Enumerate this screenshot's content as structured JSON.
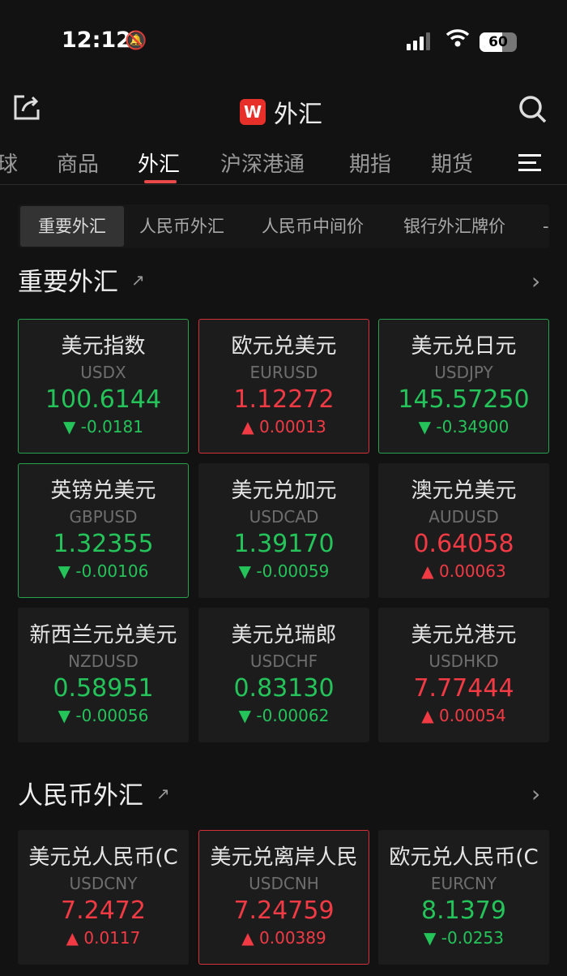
{
  "status": {
    "time": "12:12",
    "battery": "60"
  },
  "header": {
    "logo": "W",
    "title": "外汇",
    "icons": [
      "share-icon",
      "search-icon"
    ]
  },
  "tabs": [
    {
      "label": "球"
    },
    {
      "label": "商品"
    },
    {
      "label": "外汇",
      "active": true
    },
    {
      "label": "沪深港通"
    },
    {
      "label": "期指"
    },
    {
      "label": "期货"
    }
  ],
  "subtabs": [
    {
      "label": "重要外汇",
      "active": true
    },
    {
      "label": "人民币外汇"
    },
    {
      "label": "人民币中间价"
    },
    {
      "label": "银行外汇牌价"
    },
    {
      "label": "-"
    }
  ],
  "sections": [
    {
      "title": "重要外汇",
      "cards": [
        {
          "name": "美元指数",
          "code": "USDX",
          "price": "100.6144",
          "change": "-0.0181",
          "dir": "down",
          "highlight": true
        },
        {
          "name": "欧元兑美元",
          "code": "EURUSD",
          "price": "1.12272",
          "change": "0.00013",
          "dir": "up",
          "highlight": true
        },
        {
          "name": "美元兑日元",
          "code": "USDJPY",
          "price": "145.57250",
          "change": "-0.34900",
          "dir": "down",
          "highlight": true
        },
        {
          "name": "英镑兑美元",
          "code": "GBPUSD",
          "price": "1.32355",
          "change": "-0.00106",
          "dir": "down",
          "highlight": true
        },
        {
          "name": "美元兑加元",
          "code": "USDCAD",
          "price": "1.39170",
          "change": "-0.00059",
          "dir": "down"
        },
        {
          "name": "澳元兑美元",
          "code": "AUDUSD",
          "price": "0.64058",
          "change": "0.00063",
          "dir": "up"
        },
        {
          "name": "新西兰元兑美元",
          "code": "NZDUSD",
          "price": "0.58951",
          "change": "-0.00056",
          "dir": "down"
        },
        {
          "name": "美元兑瑞郎",
          "code": "USDCHF",
          "price": "0.83130",
          "change": "-0.00062",
          "dir": "down"
        },
        {
          "name": "美元兑港元",
          "code": "USDHKD",
          "price": "7.77444",
          "change": "0.00054",
          "dir": "up"
        }
      ]
    },
    {
      "title": "人民币外汇",
      "cards": [
        {
          "name": "美元兑人民币(C",
          "code": "USDCNY",
          "price": "7.2472",
          "change": "0.0117",
          "dir": "up"
        },
        {
          "name": "美元兑离岸人民",
          "code": "USDCNH",
          "price": "7.24759",
          "change": "0.00389",
          "dir": "up",
          "highlight": true
        },
        {
          "name": "欧元兑人民币(C",
          "code": "EURCNY",
          "price": "8.1379",
          "change": "-0.0253",
          "dir": "down"
        }
      ]
    }
  ],
  "colors": {
    "up": "#f23a45",
    "down": "#24c45a",
    "background": "#121212",
    "accent": "#e84a4a"
  }
}
